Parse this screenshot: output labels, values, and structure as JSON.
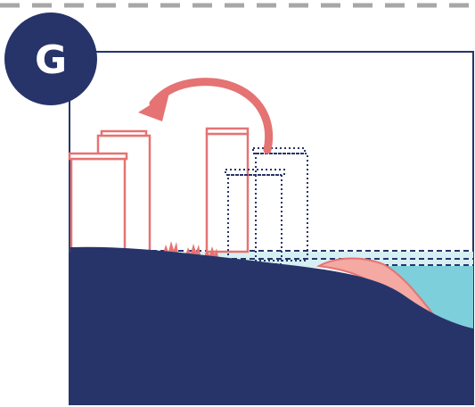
{
  "panel": {
    "letter": "G"
  },
  "colors": {
    "navy": "#273469",
    "coral": "#e57373",
    "coral_fill": "#f4a9a3",
    "water_light": "#d6eff2",
    "water": "#7ccfdb",
    "dash": "#a7a7a7",
    "frame": "#273469"
  },
  "icons": {
    "arrow": "curved-arrow-left-icon",
    "vegetation": "grass-tuft-icon"
  }
}
